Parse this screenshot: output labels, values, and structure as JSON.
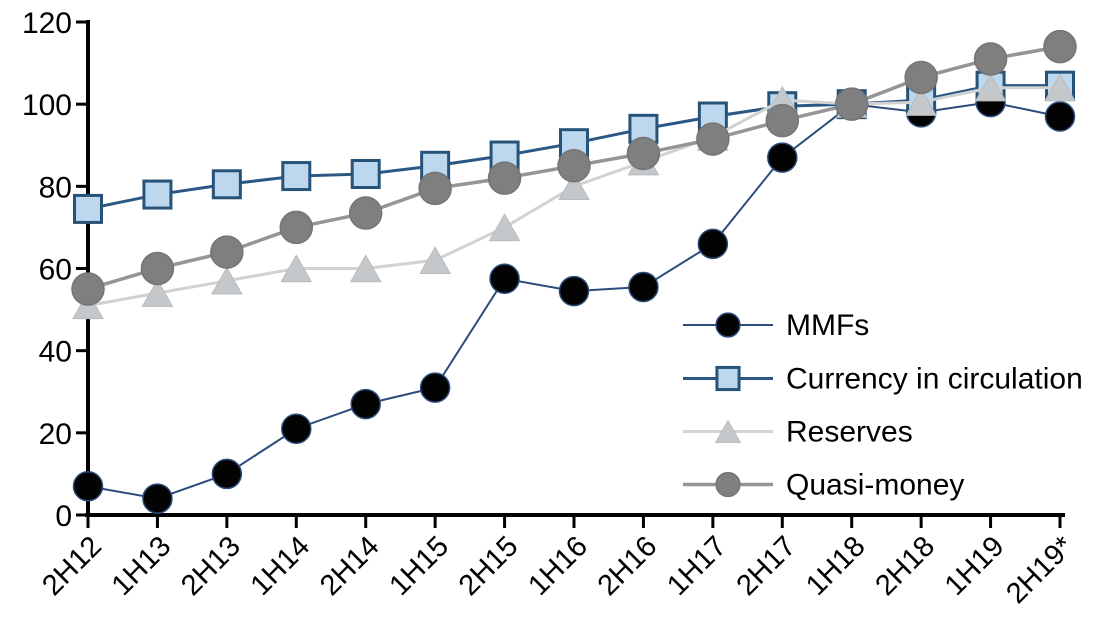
{
  "figure": {
    "background": "#ffffff",
    "axis_color": "#000000",
    "text_color": "#000000"
  },
  "chart_data": {
    "type": "line",
    "title": "",
    "xlabel": "",
    "ylabel": "",
    "grid": false,
    "legend_position": "center-right",
    "ylim": [
      0,
      120
    ],
    "yticks": [
      0,
      20,
      40,
      60,
      80,
      100,
      120
    ],
    "categories": [
      "2H12",
      "1H13",
      "2H13",
      "1H14",
      "2H14",
      "1H15",
      "2H15",
      "1H16",
      "2H16",
      "1H17",
      "2H17",
      "1H18",
      "2H18",
      "1H19",
      "2H19*"
    ],
    "series": [
      {
        "name": "MMFs",
        "marker": "circle",
        "line_color": "#2d4c7d",
        "marker_fill": "#030303",
        "marker_edge": "#2a4a7a",
        "values": [
          7,
          4,
          10,
          21,
          27,
          31,
          57.5,
          54.5,
          55.5,
          66,
          87,
          100,
          98,
          100.5,
          97
        ]
      },
      {
        "name": "Currency in circulation",
        "marker": "square",
        "line_color": "#2a5783",
        "marker_fill": "#bdd7ee",
        "marker_edge": "#275379",
        "values": [
          74.5,
          78,
          80.5,
          82.5,
          83,
          85,
          87.5,
          90.5,
          94,
          97,
          99.5,
          100,
          101,
          104.5,
          104.5
        ]
      },
      {
        "name": "Reserves",
        "marker": "triangle",
        "line_color": "#d2d2d2",
        "marker_fill": "#c5c8ca",
        "marker_edge": "#b7bbbe",
        "values": [
          51,
          54,
          57,
          60,
          60,
          62,
          70,
          80,
          86,
          92,
          101,
          100,
          100.5,
          104,
          104
        ]
      },
      {
        "name": "Quasi-money",
        "marker": "circle",
        "line_color": "#959595",
        "marker_fill": "#7f7f7f",
        "marker_edge": "#757575",
        "values": [
          55,
          60,
          64,
          70,
          73.5,
          79.5,
          82,
          85,
          88,
          91.5,
          96,
          100,
          106.5,
          111,
          114
        ]
      }
    ]
  }
}
